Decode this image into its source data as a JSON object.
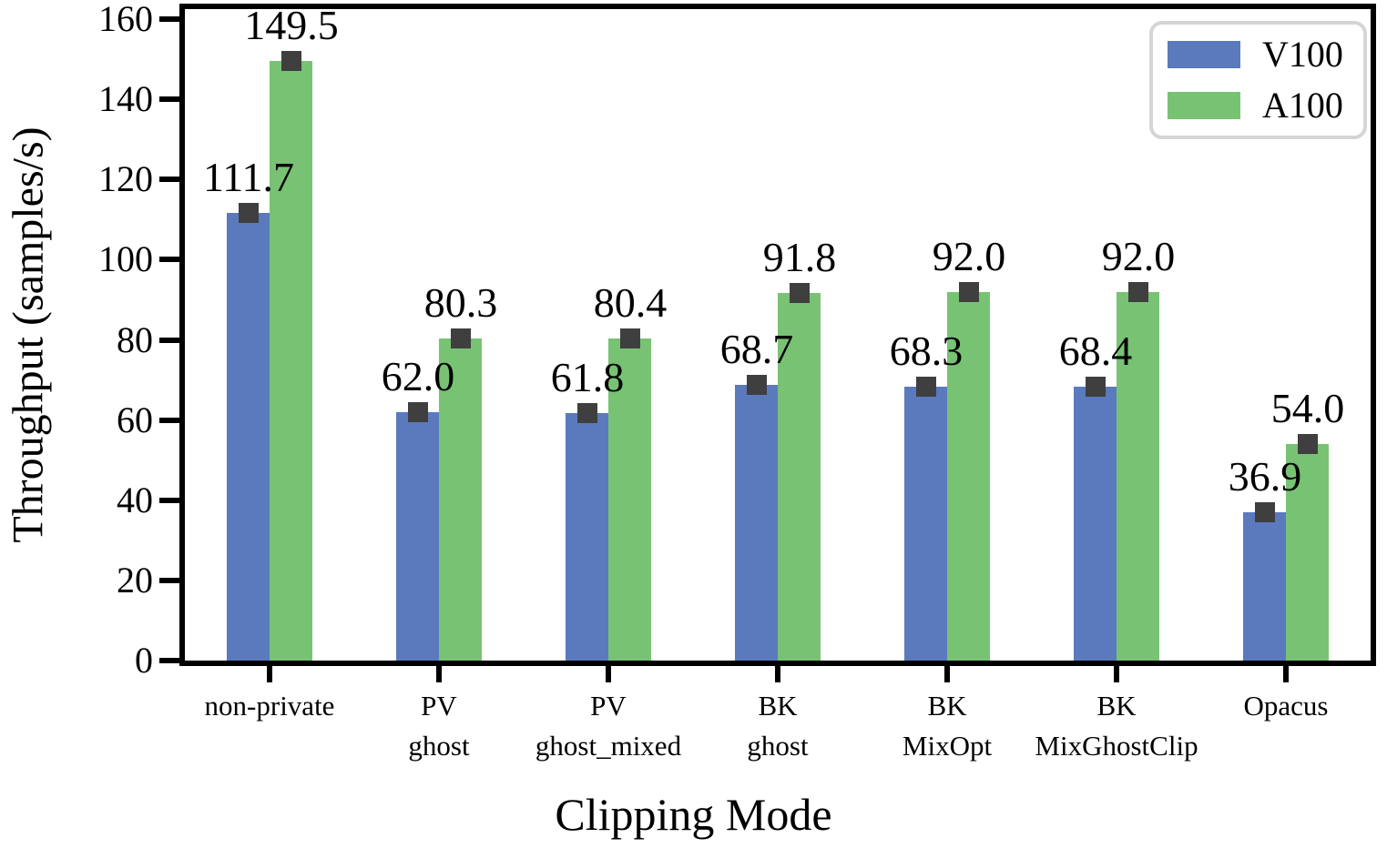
{
  "chart_data": {
    "type": "bar",
    "title": "",
    "xlabel": "Clipping Mode",
    "ylabel": "Throughput (samples/s)",
    "categories": [
      "non-private",
      "PV\nghost",
      "PV\nghost_mixed",
      "BK\nghost",
      "BK\nMixOpt",
      "BK\nMixGhostClip",
      "Opacus"
    ],
    "series": [
      {
        "name": "V100",
        "color": "#5a7abd",
        "values": [
          111.7,
          62.0,
          61.8,
          68.7,
          68.3,
          68.4,
          36.9
        ],
        "labels": [
          "111.7",
          "62.0",
          "61.8",
          "68.7",
          "68.3",
          "68.4",
          "36.9"
        ]
      },
      {
        "name": "A100",
        "color": "#78c274",
        "values": [
          149.5,
          80.3,
          80.4,
          91.8,
          92.0,
          92.0,
          54.0
        ],
        "labels": [
          "149.5",
          "80.3",
          "80.4",
          "91.8",
          "92.0",
          "92.0",
          "54.0"
        ]
      }
    ],
    "ylim": [
      0,
      160
    ],
    "yticks": [
      0,
      20,
      40,
      60,
      80,
      100,
      120,
      140,
      160
    ],
    "grid": false,
    "legend_position": "upper right",
    "colors": {
      "axis": "#000000",
      "error_bar": "#3f3f3f",
      "legend_border": "#d5d5d5",
      "background": "#ffffff"
    },
    "error_bars_visible": true
  }
}
